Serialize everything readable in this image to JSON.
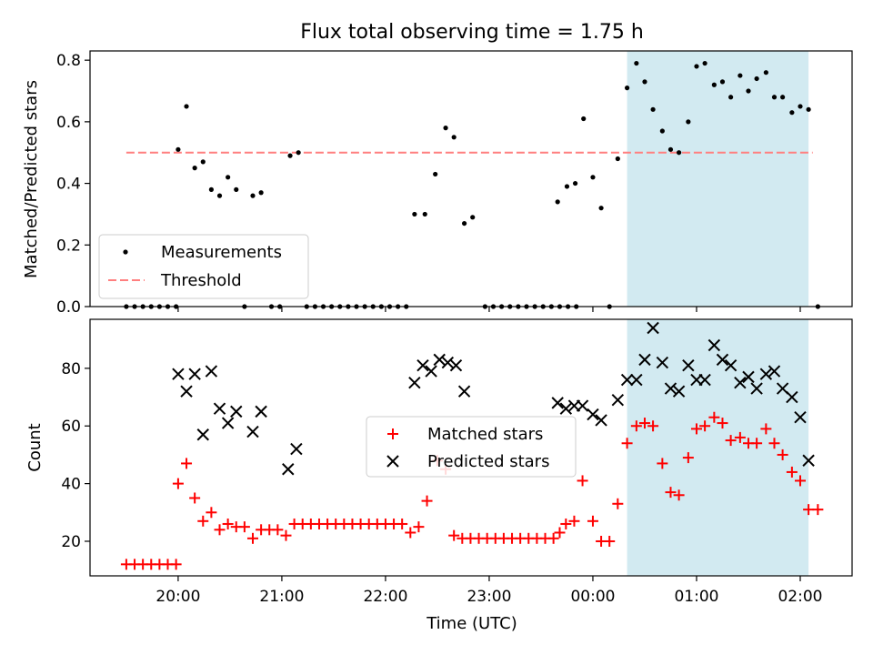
{
  "title": "Flux total observing time = 1.75 h",
  "colors": {
    "measurement": "#000000",
    "threshold": "#ff7f7f",
    "matched": "#ff0000",
    "predicted": "#000000",
    "highlight": "#add8e6"
  },
  "chart_data": [
    {
      "type": "scatter",
      "panel": "top",
      "xlabel": "",
      "ylabel": "Matched/Predicted stars",
      "x_unit": "hours since 00:00 UTC (negative = previous evening)",
      "xlim": [
        -4.85,
        2.5
      ],
      "ylim": [
        0,
        0.83
      ],
      "yticks": [
        0.0,
        0.2,
        0.4,
        0.6,
        0.8
      ],
      "ytick_labels": [
        "0.0",
        "0.2",
        "0.4",
        "0.6",
        "0.8"
      ],
      "shaded_span": [
        0.33,
        2.08
      ],
      "threshold": {
        "name": "Threshold",
        "y": 0.5,
        "x": [
          -4.5,
          2.12
        ],
        "style": "dashed"
      },
      "legend": {
        "position": "lower-left",
        "entries": [
          "Measurements",
          "Threshold"
        ]
      },
      "series": [
        {
          "name": "Measurements",
          "marker": "dot",
          "points": [
            [
              -4.5,
              0.0
            ],
            [
              -4.42,
              0.0
            ],
            [
              -4.34,
              0.0
            ],
            [
              -4.26,
              0.0
            ],
            [
              -4.18,
              0.0
            ],
            [
              -4.1,
              0.0
            ],
            [
              -4.02,
              0.0
            ],
            [
              -4.0,
              0.51
            ],
            [
              -3.92,
              0.65
            ],
            [
              -3.84,
              0.45
            ],
            [
              -3.76,
              0.47
            ],
            [
              -3.68,
              0.38
            ],
            [
              -3.6,
              0.36
            ],
            [
              -3.52,
              0.42
            ],
            [
              -3.44,
              0.38
            ],
            [
              -3.36,
              0.0
            ],
            [
              -3.28,
              0.36
            ],
            [
              -3.2,
              0.37
            ],
            [
              -3.1,
              0.0
            ],
            [
              -3.02,
              0.0
            ],
            [
              -2.92,
              0.49
            ],
            [
              -2.84,
              0.5
            ],
            [
              -2.76,
              0.0
            ],
            [
              -2.68,
              0.0
            ],
            [
              -2.6,
              0.0
            ],
            [
              -2.52,
              0.0
            ],
            [
              -2.44,
              0.0
            ],
            [
              -2.36,
              0.0
            ],
            [
              -2.28,
              0.0
            ],
            [
              -2.2,
              0.0
            ],
            [
              -2.12,
              0.0
            ],
            [
              -2.04,
              0.0
            ],
            [
              -1.96,
              0.0
            ],
            [
              -1.88,
              0.0
            ],
            [
              -1.8,
              0.0
            ],
            [
              -1.72,
              0.3
            ],
            [
              -1.62,
              0.3
            ],
            [
              -1.52,
              0.43
            ],
            [
              -1.42,
              0.58
            ],
            [
              -1.34,
              0.55
            ],
            [
              -1.24,
              0.27
            ],
            [
              -1.16,
              0.29
            ],
            [
              -1.04,
              0.0
            ],
            [
              -0.96,
              0.0
            ],
            [
              -0.88,
              0.0
            ],
            [
              -0.8,
              0.0
            ],
            [
              -0.72,
              0.0
            ],
            [
              -0.64,
              0.0
            ],
            [
              -0.56,
              0.0
            ],
            [
              -0.48,
              0.0
            ],
            [
              -0.4,
              0.0
            ],
            [
              -0.32,
              0.0
            ],
            [
              -0.24,
              0.0
            ],
            [
              -0.16,
              0.0
            ],
            [
              -0.34,
              0.34
            ],
            [
              -0.25,
              0.39
            ],
            [
              -0.17,
              0.4
            ],
            [
              -0.09,
              0.61
            ],
            [
              0.0,
              0.42
            ],
            [
              0.08,
              0.32
            ],
            [
              0.16,
              0.0
            ],
            [
              0.24,
              0.48
            ],
            [
              0.33,
              0.71
            ],
            [
              0.42,
              0.79
            ],
            [
              0.5,
              0.73
            ],
            [
              0.58,
              0.64
            ],
            [
              0.67,
              0.57
            ],
            [
              0.75,
              0.51
            ],
            [
              0.83,
              0.5
            ],
            [
              0.92,
              0.6
            ],
            [
              1.0,
              0.78
            ],
            [
              1.08,
              0.79
            ],
            [
              1.17,
              0.72
            ],
            [
              1.25,
              0.73
            ],
            [
              1.33,
              0.68
            ],
            [
              1.42,
              0.75
            ],
            [
              1.5,
              0.7
            ],
            [
              1.58,
              0.74
            ],
            [
              1.67,
              0.76
            ],
            [
              1.75,
              0.68
            ],
            [
              1.83,
              0.68
            ],
            [
              1.92,
              0.63
            ],
            [
              2.0,
              0.65
            ],
            [
              2.08,
              0.64
            ],
            [
              2.17,
              0.0
            ]
          ]
        }
      ]
    },
    {
      "type": "scatter",
      "panel": "bottom",
      "xlabel": "Time (UTC)",
      "ylabel": "Count",
      "x_unit": "hours since 00:00 UTC (negative = previous evening)",
      "xlim": [
        -4.85,
        2.5
      ],
      "ylim": [
        8,
        97
      ],
      "xticks": [
        -4,
        -3,
        -2,
        -1,
        0,
        1,
        2
      ],
      "xtick_labels": [
        "20:00",
        "21:00",
        "22:00",
        "23:00",
        "00:00",
        "01:00",
        "02:00"
      ],
      "yticks": [
        20,
        40,
        60,
        80
      ],
      "ytick_labels": [
        "20",
        "40",
        "60",
        "80"
      ],
      "shaded_span": [
        0.33,
        2.08
      ],
      "legend": {
        "position": "center",
        "entries": [
          "Matched stars",
          "Predicted stars"
        ]
      },
      "series": [
        {
          "name": "Matched stars",
          "marker": "plus",
          "points": [
            [
              -4.5,
              12
            ],
            [
              -4.42,
              12
            ],
            [
              -4.34,
              12
            ],
            [
              -4.26,
              12
            ],
            [
              -4.18,
              12
            ],
            [
              -4.1,
              12
            ],
            [
              -4.02,
              12
            ],
            [
              -4.0,
              40
            ],
            [
              -3.92,
              47
            ],
            [
              -3.84,
              35
            ],
            [
              -3.76,
              27
            ],
            [
              -3.68,
              30
            ],
            [
              -3.6,
              24
            ],
            [
              -3.52,
              26
            ],
            [
              -3.44,
              25
            ],
            [
              -3.36,
              25
            ],
            [
              -3.28,
              21
            ],
            [
              -3.2,
              24
            ],
            [
              -3.12,
              24
            ],
            [
              -3.04,
              24
            ],
            [
              -2.96,
              22
            ],
            [
              -2.88,
              26
            ],
            [
              -2.8,
              26
            ],
            [
              -2.72,
              26
            ],
            [
              -2.64,
              26
            ],
            [
              -2.56,
              26
            ],
            [
              -2.48,
              26
            ],
            [
              -2.4,
              26
            ],
            [
              -2.32,
              26
            ],
            [
              -2.24,
              26
            ],
            [
              -2.16,
              26
            ],
            [
              -2.08,
              26
            ],
            [
              -2.0,
              26
            ],
            [
              -1.92,
              26
            ],
            [
              -1.84,
              26
            ],
            [
              -1.76,
              23
            ],
            [
              -1.68,
              25
            ],
            [
              -1.6,
              34
            ],
            [
              -1.5,
              48
            ],
            [
              -1.42,
              45
            ],
            [
              -1.34,
              22
            ],
            [
              -1.26,
              21
            ],
            [
              -1.18,
              21
            ],
            [
              -1.1,
              21
            ],
            [
              -1.02,
              21
            ],
            [
              -0.94,
              21
            ],
            [
              -0.86,
              21
            ],
            [
              -0.78,
              21
            ],
            [
              -0.7,
              21
            ],
            [
              -0.62,
              21
            ],
            [
              -0.54,
              21
            ],
            [
              -0.46,
              21
            ],
            [
              -0.38,
              21
            ],
            [
              -0.32,
              23
            ],
            [
              -0.26,
              26
            ],
            [
              -0.18,
              27
            ],
            [
              -0.1,
              41
            ],
            [
              0.0,
              27
            ],
            [
              0.08,
              20
            ],
            [
              0.16,
              20
            ],
            [
              0.24,
              33
            ],
            [
              0.33,
              54
            ],
            [
              0.42,
              60
            ],
            [
              0.5,
              61
            ],
            [
              0.58,
              60
            ],
            [
              0.67,
              47
            ],
            [
              0.75,
              37
            ],
            [
              0.83,
              36
            ],
            [
              0.92,
              49
            ],
            [
              1.0,
              59
            ],
            [
              1.08,
              60
            ],
            [
              1.17,
              63
            ],
            [
              1.25,
              61
            ],
            [
              1.33,
              55
            ],
            [
              1.42,
              56
            ],
            [
              1.5,
              54
            ],
            [
              1.58,
              54
            ],
            [
              1.67,
              59
            ],
            [
              1.75,
              54
            ],
            [
              1.83,
              50
            ],
            [
              1.92,
              44
            ],
            [
              2.0,
              41
            ],
            [
              2.08,
              31
            ],
            [
              2.17,
              31
            ]
          ]
        },
        {
          "name": "Predicted stars",
          "marker": "x",
          "points": [
            [
              -4.0,
              78
            ],
            [
              -3.92,
              72
            ],
            [
              -3.84,
              78
            ],
            [
              -3.76,
              57
            ],
            [
              -3.68,
              79
            ],
            [
              -3.6,
              66
            ],
            [
              -3.52,
              61
            ],
            [
              -3.44,
              65
            ],
            [
              -3.28,
              58
            ],
            [
              -3.2,
              65
            ],
            [
              -2.94,
              45
            ],
            [
              -2.86,
              52
            ],
            [
              -1.72,
              75
            ],
            [
              -1.64,
              81
            ],
            [
              -1.56,
              79
            ],
            [
              -1.48,
              83
            ],
            [
              -1.4,
              82
            ],
            [
              -1.32,
              81
            ],
            [
              -1.24,
              72
            ],
            [
              -0.34,
              68
            ],
            [
              -0.26,
              66
            ],
            [
              -0.18,
              67
            ],
            [
              -0.1,
              67
            ],
            [
              0.0,
              64
            ],
            [
              0.08,
              62
            ],
            [
              0.24,
              69
            ],
            [
              0.33,
              76
            ],
            [
              0.42,
              76
            ],
            [
              0.5,
              83
            ],
            [
              0.58,
              94
            ],
            [
              0.67,
              82
            ],
            [
              0.75,
              73
            ],
            [
              0.83,
              72
            ],
            [
              0.92,
              81
            ],
            [
              1.0,
              76
            ],
            [
              1.08,
              76
            ],
            [
              1.17,
              88
            ],
            [
              1.25,
              83
            ],
            [
              1.33,
              81
            ],
            [
              1.42,
              75
            ],
            [
              1.5,
              77
            ],
            [
              1.58,
              73
            ],
            [
              1.67,
              78
            ],
            [
              1.75,
              79
            ],
            [
              1.83,
              73
            ],
            [
              1.92,
              70
            ],
            [
              2.0,
              63
            ],
            [
              2.08,
              48
            ]
          ]
        }
      ]
    }
  ]
}
